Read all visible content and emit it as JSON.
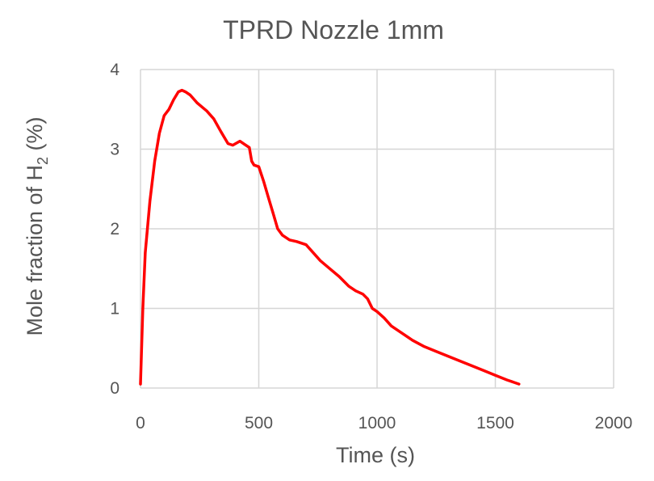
{
  "chart_data": {
    "type": "line",
    "title": "TPRD Nozzle 1mm",
    "xlabel": "Time (s)",
    "ylabel_main": "Mole fraction of H",
    "ylabel_sub": "2",
    "ylabel_tail": " (%)",
    "xlim": [
      0,
      2000
    ],
    "ylim": [
      0,
      4
    ],
    "x_ticks": [
      "0",
      "500",
      "1000",
      "1500",
      "2000"
    ],
    "y_ticks": [
      "0",
      "1",
      "2",
      "3",
      "4"
    ],
    "grid": true,
    "line_color": "#ff0000",
    "series": [
      {
        "x": [
          0,
          10,
          20,
          40,
          60,
          80,
          100,
          120,
          140,
          160,
          175,
          190,
          210,
          240,
          280,
          310,
          340,
          370,
          390,
          420,
          440,
          460,
          470,
          480,
          500,
          520,
          540,
          560,
          580,
          600,
          630,
          660,
          700,
          730,
          760,
          800,
          840,
          880,
          910,
          940,
          960,
          980,
          1000,
          1030,
          1060,
          1100,
          1150,
          1200,
          1250,
          1300,
          1350,
          1400,
          1450,
          1500,
          1550,
          1600
        ],
        "y": [
          0.05,
          1.0,
          1.7,
          2.35,
          2.85,
          3.2,
          3.42,
          3.5,
          3.62,
          3.72,
          3.74,
          3.72,
          3.68,
          3.58,
          3.48,
          3.38,
          3.22,
          3.07,
          3.05,
          3.1,
          3.06,
          3.02,
          2.85,
          2.8,
          2.78,
          2.6,
          2.4,
          2.2,
          2.0,
          1.92,
          1.86,
          1.84,
          1.8,
          1.7,
          1.6,
          1.5,
          1.4,
          1.28,
          1.22,
          1.18,
          1.12,
          1.0,
          0.96,
          0.88,
          0.78,
          0.7,
          0.6,
          0.52,
          0.46,
          0.4,
          0.34,
          0.28,
          0.22,
          0.16,
          0.1,
          0.05
        ]
      }
    ]
  }
}
